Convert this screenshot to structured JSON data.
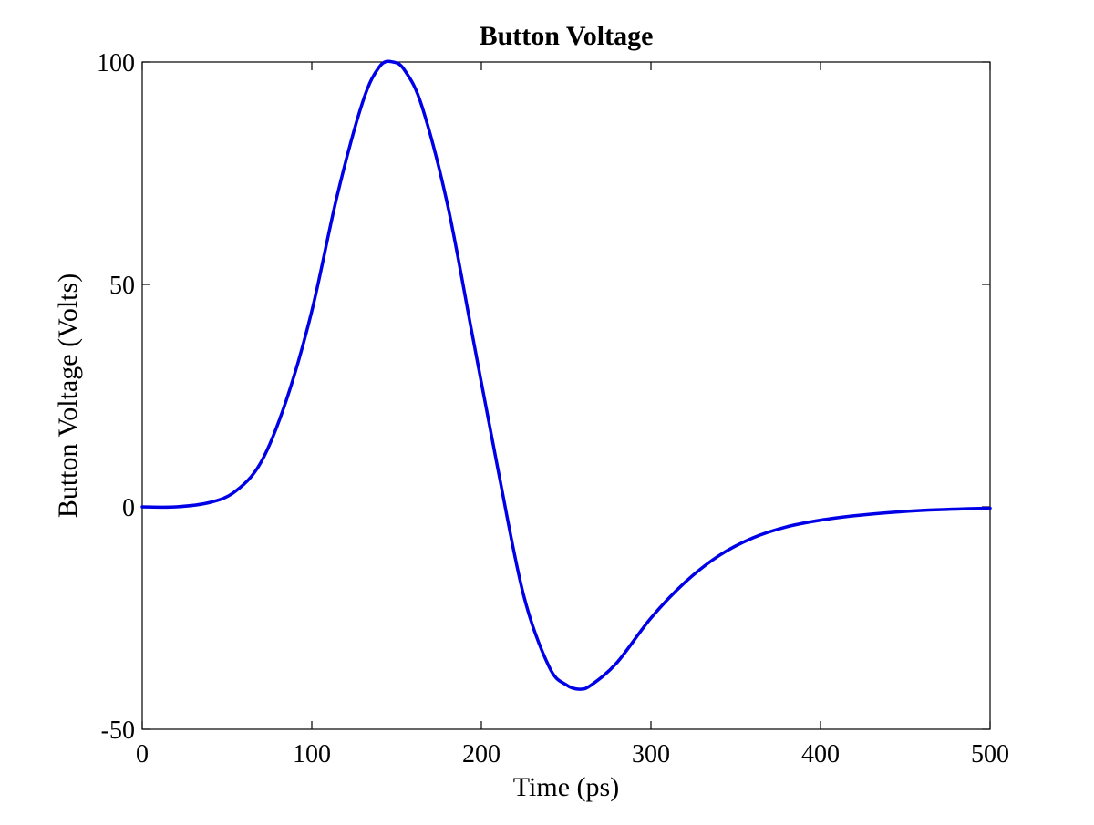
{
  "chart_data": {
    "type": "line",
    "title": "Button Voltage",
    "xlabel": "Time (ps)",
    "ylabel": "Button Voltage (Volts)",
    "xlim": [
      0,
      500
    ],
    "ylim": [
      -50,
      100
    ],
    "xticks": [
      0,
      100,
      200,
      300,
      400,
      500
    ],
    "yticks": [
      -50,
      0,
      50,
      100
    ],
    "grid": false,
    "line_color": "#0000e6",
    "series": [
      {
        "x": [
          0,
          20,
          40,
          55,
          70,
          85,
          100,
          115,
          130,
          140,
          148,
          155,
          165,
          180,
          195,
          210,
          225,
          240,
          250,
          258,
          265,
          280,
          300,
          320,
          340,
          360,
          380,
          400,
          420,
          440,
          460,
          480,
          500
        ],
        "values": [
          0,
          0,
          1,
          3.5,
          10,
          24,
          44,
          70,
          91,
          99,
          100,
          98,
          90,
          68,
          38,
          8,
          -20,
          -36,
          -40,
          -41,
          -40,
          -35,
          -25,
          -17,
          -11,
          -7,
          -4.5,
          -3,
          -2,
          -1.3,
          -0.8,
          -0.5,
          -0.3
        ]
      }
    ]
  }
}
